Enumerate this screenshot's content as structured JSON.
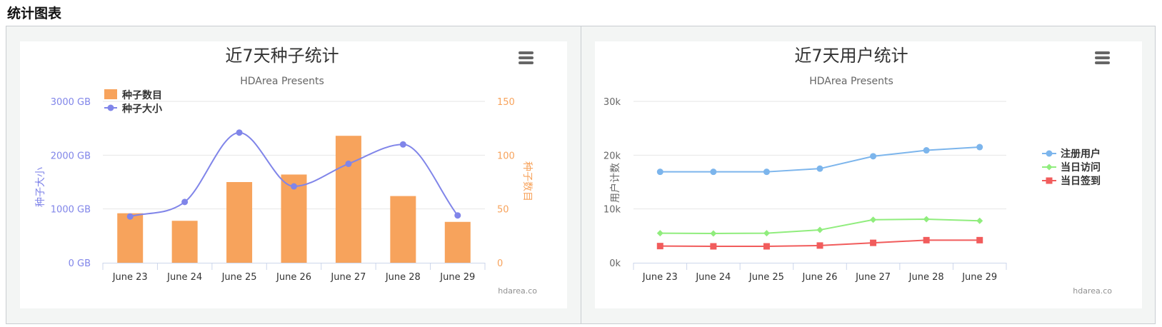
{
  "page": {
    "section_title": "统计图表"
  },
  "chart_data": [
    {
      "type": "bar",
      "title": "近7天种子统计",
      "subtitle": "HDArea Presents",
      "credits": "hdarea.co",
      "categories": [
        "June 23",
        "June 24",
        "June 25",
        "June 26",
        "June 27",
        "June 28",
        "June 29"
      ],
      "series": [
        {
          "name": "种子数目",
          "type": "bar",
          "axis": "right",
          "color": "#f7a35c",
          "values": [
            46,
            39,
            75,
            82,
            118,
            62,
            38
          ]
        },
        {
          "name": "种子大小",
          "type": "line",
          "axis": "left",
          "color": "#8085e9",
          "values": [
            860,
            1130,
            2420,
            1420,
            1840,
            2200,
            880
          ]
        }
      ],
      "y_left": {
        "label": "种子大小",
        "ticks": [
          "0 GB",
          "1000 GB",
          "2000 GB",
          "3000 GB"
        ],
        "min": 0,
        "max": 3000,
        "color": "#8085e9"
      },
      "y_right": {
        "label": "种子数目",
        "ticks": [
          "0",
          "50",
          "100",
          "150"
        ],
        "min": 0,
        "max": 150,
        "color": "#f7a35c"
      },
      "legend_position": "top-left",
      "grid": true
    },
    {
      "type": "line",
      "title": "近7天用户统计",
      "subtitle": "HDArea Presents",
      "credits": "hdarea.co",
      "categories": [
        "June 23",
        "June 24",
        "June 25",
        "June 26",
        "June 27",
        "June 28",
        "June 29"
      ],
      "series": [
        {
          "name": "注册用户",
          "marker": "circle",
          "color": "#7cb5ec",
          "values": [
            16900,
            16900,
            16900,
            17500,
            19800,
            20900,
            21500
          ]
        },
        {
          "name": "当日访问",
          "marker": "diamond",
          "color": "#90ed7d",
          "values": [
            5500,
            5450,
            5500,
            6100,
            8000,
            8100,
            7800
          ]
        },
        {
          "name": "当日签到",
          "marker": "square",
          "color": "#f15c5c",
          "values": [
            3100,
            3050,
            3050,
            3200,
            3700,
            4200,
            4200
          ]
        }
      ],
      "y": {
        "label": "用户计数",
        "ticks": [
          "0k",
          "10k",
          "20k",
          "30k"
        ],
        "min": 0,
        "max": 30000,
        "color": "#666666"
      },
      "legend_position": "right",
      "grid": true
    }
  ]
}
